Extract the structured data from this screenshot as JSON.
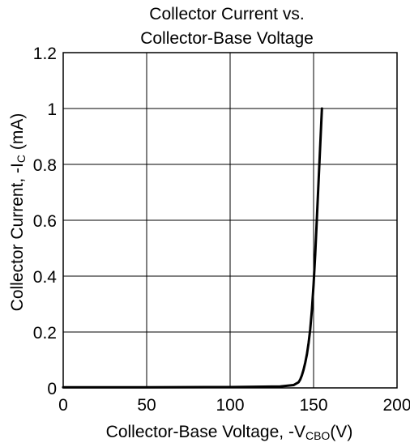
{
  "chart_data": {
    "type": "line",
    "title_lines": [
      "Collector Current vs.",
      "Collector-Base Voltage"
    ],
    "xlabel": {
      "main": "Collector-Base Voltage, -V",
      "sub": "CBO",
      "unit": "(V)"
    },
    "ylabel": {
      "main": "Collector Current, -I",
      "sub": "C",
      "unit": " (mA)"
    },
    "xlim": [
      0,
      200
    ],
    "ylim": [
      0,
      1.2
    ],
    "xticks": [
      "0",
      "50",
      "100",
      "150",
      "200"
    ],
    "yticks": [
      "0",
      "0.2",
      "0.4",
      "0.6",
      "0.8",
      "1",
      "1.2"
    ],
    "grid": true,
    "series": [
      {
        "x": [
          0,
          50,
          100,
          130,
          138,
          141,
          142,
          143,
          144,
          145,
          146,
          147,
          148,
          149,
          150,
          151,
          152,
          153,
          154,
          155
        ],
        "y": [
          0.002,
          0.002,
          0.003,
          0.005,
          0.01,
          0.02,
          0.03,
          0.045,
          0.065,
          0.09,
          0.12,
          0.16,
          0.21,
          0.28,
          0.37,
          0.48,
          0.61,
          0.74,
          0.87,
          1.0
        ]
      }
    ]
  }
}
